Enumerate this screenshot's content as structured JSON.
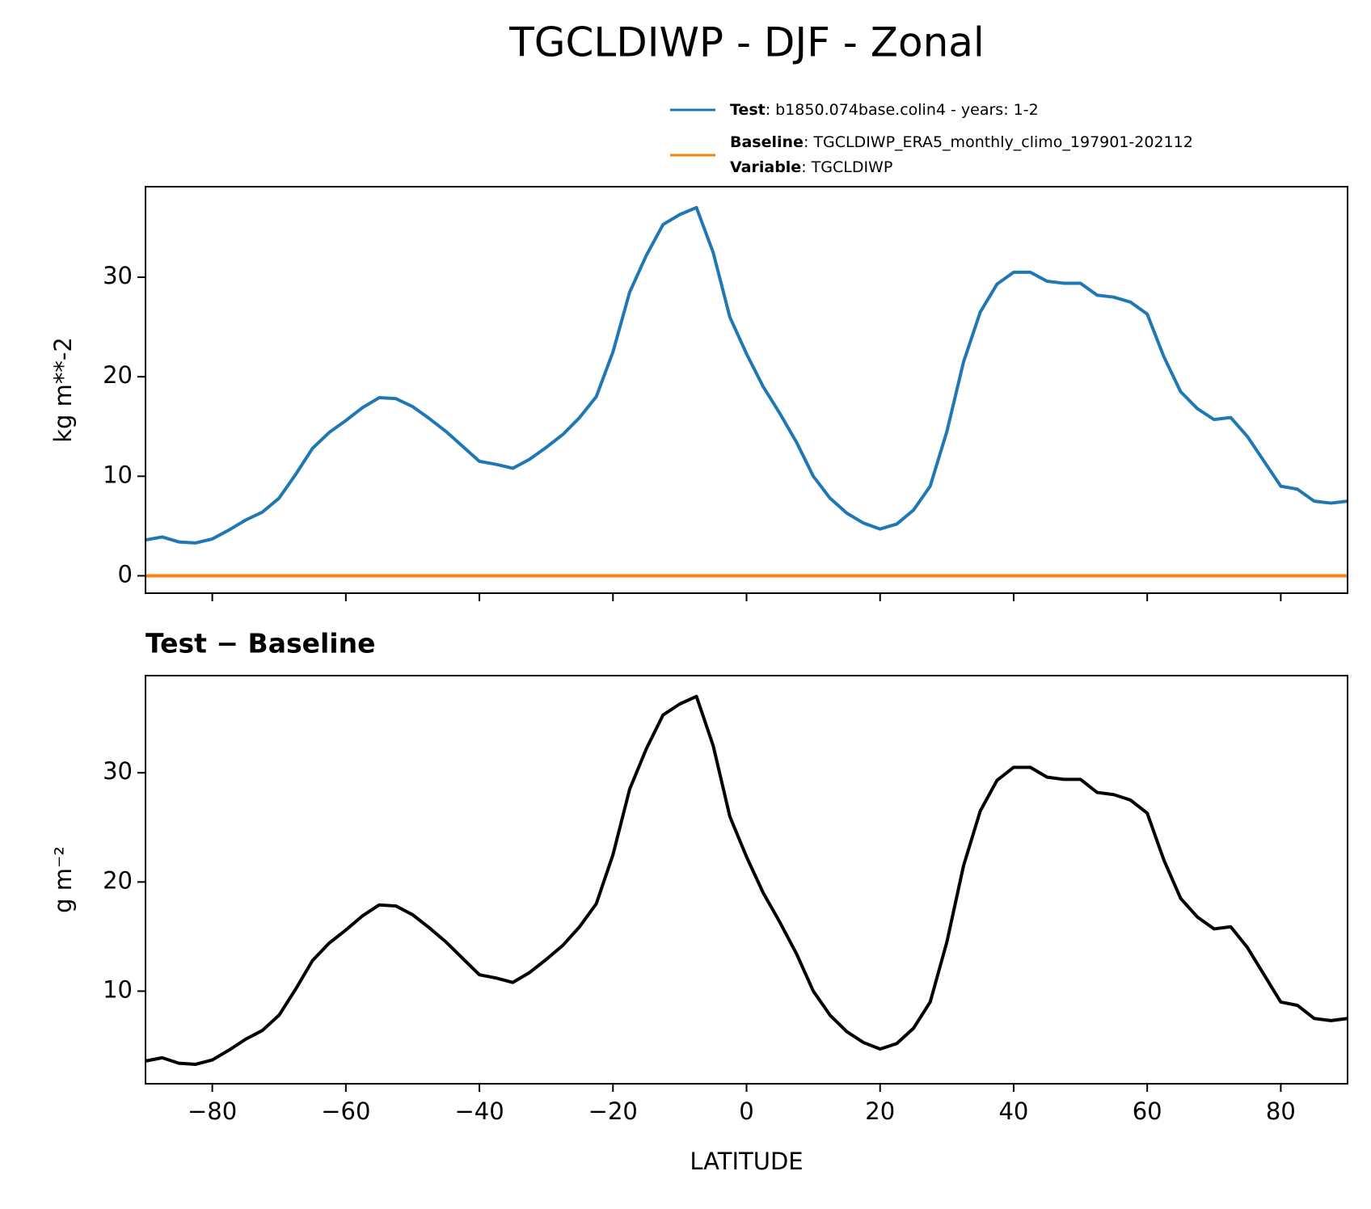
{
  "title": "TGCLDIWP - DJF - Zonal",
  "chart_data": [
    {
      "type": "line",
      "ylabel": "kg m**-2",
      "xlim": [
        -90,
        90
      ],
      "ylim": [
        -1.75,
        39.1
      ],
      "xticks": [
        -80,
        -60,
        -40,
        -20,
        0,
        20,
        40,
        60,
        80
      ],
      "yticks": [
        0,
        10,
        20,
        30
      ],
      "x": [
        -90,
        -87.5,
        -85,
        -82.5,
        -80,
        -77.5,
        -75,
        -72.5,
        -70,
        -67.5,
        -65,
        -62.5,
        -60,
        -57.5,
        -55,
        -52.5,
        -50,
        -47.5,
        -45,
        -42.5,
        -40,
        -37.5,
        -35,
        -32.5,
        -30,
        -27.5,
        -25,
        -22.5,
        -20,
        -17.5,
        -15,
        -12.5,
        -10,
        -7.5,
        -5,
        -2.5,
        0,
        2.5,
        5,
        7.5,
        10,
        12.5,
        15,
        17.5,
        20,
        22.5,
        25,
        27.5,
        30,
        32.5,
        35,
        37.5,
        40,
        42.5,
        45,
        47.5,
        50,
        52.5,
        55,
        57.5,
        60,
        62.5,
        65,
        67.5,
        70,
        72.5,
        75,
        77.5,
        80,
        82.5,
        85,
        87.5,
        90
      ],
      "series": [
        {
          "name": "Test",
          "description": ": b1850.074base.colin4 - years: 1-2",
          "color": "#1f77b4",
          "values": [
            3.6,
            3.9,
            3.4,
            3.3,
            3.7,
            4.6,
            5.6,
            6.4,
            7.8,
            10.2,
            12.8,
            14.4,
            15.6,
            16.9,
            17.9,
            17.8,
            17.0,
            15.8,
            14.5,
            13.0,
            11.5,
            11.2,
            10.8,
            11.7,
            12.9,
            14.2,
            15.9,
            18.0,
            22.5,
            28.5,
            32.2,
            35.3,
            36.3,
            37.0,
            32.5,
            26.0,
            22.3,
            19.0,
            16.3,
            13.4,
            10.0,
            7.8,
            6.3,
            5.3,
            4.7,
            5.2,
            6.6,
            9.0,
            14.5,
            21.5,
            26.5,
            29.3,
            30.5,
            30.5,
            29.6,
            29.4,
            29.4,
            28.2,
            28.0,
            27.5,
            26.3,
            22.0,
            18.5,
            16.8,
            15.7,
            15.9,
            14.0,
            11.5,
            9.0,
            8.7,
            7.5,
            7.3,
            7.5
          ]
        },
        {
          "name": "Baseline",
          "description": ": TGCLDIWP_ERA5_monthly_climo_197901-202112",
          "extra_name": "Variable",
          "extra_description": ": TGCLDIWP",
          "color": "#ff7f0e",
          "values": [
            0,
            0,
            0,
            0,
            0,
            0,
            0,
            0,
            0,
            0,
            0,
            0,
            0,
            0,
            0,
            0,
            0,
            0,
            0,
            0,
            0,
            0,
            0,
            0,
            0,
            0,
            0,
            0,
            0,
            0,
            0,
            0,
            0,
            0,
            0,
            0,
            0,
            0,
            0,
            0,
            0,
            0,
            0,
            0,
            0,
            0,
            0,
            0,
            0,
            0,
            0,
            0,
            0,
            0,
            0,
            0,
            0,
            0,
            0,
            0,
            0,
            0,
            0,
            0,
            0,
            0,
            0,
            0,
            0,
            0,
            0,
            0,
            0
          ]
        }
      ]
    },
    {
      "type": "line",
      "title": "Test − Baseline",
      "ylabel": "g m⁻²",
      "xlabel": "LATITUDE",
      "xlim": [
        -90,
        90
      ],
      "ylim": [
        1.52,
        38.9
      ],
      "xticks": [
        {
          "value": -80,
          "label": "−80"
        },
        {
          "value": -60,
          "label": "−60"
        },
        {
          "value": -40,
          "label": "−40"
        },
        {
          "value": -20,
          "label": "−20"
        },
        0,
        20,
        40,
        60,
        80
      ],
      "yticks": [
        10,
        20,
        30
      ],
      "x": [
        -90,
        -87.5,
        -85,
        -82.5,
        -80,
        -77.5,
        -75,
        -72.5,
        -70,
        -67.5,
        -65,
        -62.5,
        -60,
        -57.5,
        -55,
        -52.5,
        -50,
        -47.5,
        -45,
        -42.5,
        -40,
        -37.5,
        -35,
        -32.5,
        -30,
        -27.5,
        -25,
        -22.5,
        -20,
        -17.5,
        -15,
        -12.5,
        -10,
        -7.5,
        -5,
        -2.5,
        0,
        2.5,
        5,
        7.5,
        10,
        12.5,
        15,
        17.5,
        20,
        22.5,
        25,
        27.5,
        30,
        32.5,
        35,
        37.5,
        40,
        42.5,
        45,
        47.5,
        50,
        52.5,
        55,
        57.5,
        60,
        62.5,
        65,
        67.5,
        70,
        72.5,
        75,
        77.5,
        80,
        82.5,
        85,
        87.5,
        90
      ],
      "series": [
        {
          "color": "#000000",
          "values": [
            3.6,
            3.9,
            3.4,
            3.3,
            3.7,
            4.6,
            5.6,
            6.4,
            7.8,
            10.2,
            12.8,
            14.4,
            15.6,
            16.9,
            17.9,
            17.8,
            17.0,
            15.8,
            14.5,
            13.0,
            11.5,
            11.2,
            10.8,
            11.7,
            12.9,
            14.2,
            15.9,
            18.0,
            22.5,
            28.5,
            32.2,
            35.3,
            36.3,
            37.0,
            32.5,
            26.0,
            22.3,
            19.0,
            16.3,
            13.4,
            10.0,
            7.8,
            6.3,
            5.3,
            4.7,
            5.2,
            6.6,
            9.0,
            14.5,
            21.5,
            26.5,
            29.3,
            30.5,
            30.5,
            29.6,
            29.4,
            29.4,
            28.2,
            28.0,
            27.5,
            26.3,
            22.0,
            18.5,
            16.8,
            15.7,
            15.9,
            14.0,
            11.5,
            9.0,
            8.7,
            7.5,
            7.3,
            7.5
          ]
        }
      ]
    }
  ]
}
